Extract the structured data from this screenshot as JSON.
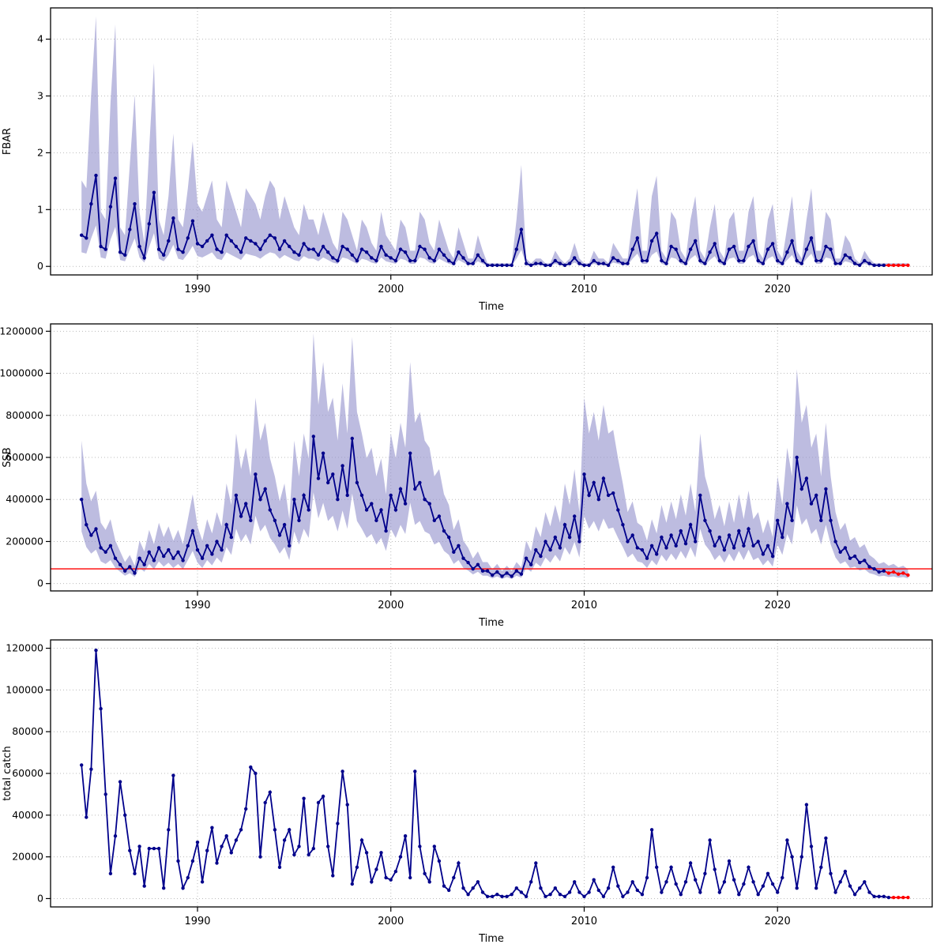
{
  "colors": {
    "line": "#00008B",
    "point": "#00008B",
    "band": "#9493CD",
    "forecast": "#FF0000",
    "ref_line": "#FF0000",
    "grid": "#BBBBBB",
    "axis": "#000000",
    "background": "#FFFFFF"
  },
  "chart_data": [
    {
      "type": "line",
      "title": "",
      "ylabel": "FBAR",
      "xlabel": "Time",
      "x_start": 1984,
      "x_step": 0.25,
      "xlim": [
        1982.4,
        2028.0
      ],
      "ylim": [
        -0.15,
        4.55
      ],
      "xticks": [
        1990,
        2000,
        2010,
        2020
      ],
      "yticks": [
        0,
        1,
        2,
        3,
        4
      ],
      "grid": true,
      "legend": "none",
      "has_band": true,
      "ci_upper_factor": 2.75,
      "ci_lower_factor": 0.45,
      "forecast_points": 5,
      "values": [
        0.55,
        0.5,
        1.1,
        1.6,
        0.35,
        0.3,
        1.05,
        1.55,
        0.25,
        0.2,
        0.65,
        1.1,
        0.35,
        0.15,
        0.75,
        1.3,
        0.3,
        0.2,
        0.45,
        0.85,
        0.3,
        0.25,
        0.5,
        0.8,
        0.4,
        0.35,
        0.45,
        0.55,
        0.3,
        0.25,
        0.55,
        0.45,
        0.35,
        0.25,
        0.5,
        0.45,
        0.4,
        0.3,
        0.45,
        0.55,
        0.5,
        0.3,
        0.45,
        0.35,
        0.25,
        0.2,
        0.4,
        0.3,
        0.3,
        0.2,
        0.35,
        0.25,
        0.15,
        0.1,
        0.35,
        0.3,
        0.2,
        0.1,
        0.3,
        0.25,
        0.15,
        0.1,
        0.35,
        0.2,
        0.15,
        0.1,
        0.3,
        0.25,
        0.1,
        0.1,
        0.35,
        0.3,
        0.15,
        0.1,
        0.3,
        0.2,
        0.1,
        0.05,
        0.25,
        0.15,
        0.05,
        0.05,
        0.2,
        0.1,
        0.02,
        0.02,
        0.02,
        0.02,
        0.02,
        0.02,
        0.3,
        0.65,
        0.05,
        0.02,
        0.05,
        0.05,
        0.02,
        0.02,
        0.1,
        0.05,
        0.02,
        0.05,
        0.15,
        0.05,
        0.02,
        0.02,
        0.1,
        0.05,
        0.05,
        0.02,
        0.15,
        0.1,
        0.05,
        0.05,
        0.3,
        0.5,
        0.1,
        0.1,
        0.45,
        0.58,
        0.1,
        0.05,
        0.35,
        0.3,
        0.1,
        0.05,
        0.3,
        0.45,
        0.1,
        0.05,
        0.25,
        0.4,
        0.1,
        0.05,
        0.3,
        0.35,
        0.1,
        0.1,
        0.35,
        0.45,
        0.1,
        0.05,
        0.3,
        0.4,
        0.1,
        0.05,
        0.25,
        0.45,
        0.1,
        0.05,
        0.3,
        0.5,
        0.1,
        0.1,
        0.35,
        0.3,
        0.05,
        0.05,
        0.2,
        0.15,
        0.05,
        0.02,
        0.1,
        0.05,
        0.02,
        0.02,
        0.02,
        0.02,
        0.02,
        0.02,
        0.02,
        0.02
      ]
    },
    {
      "type": "line",
      "title": "",
      "ylabel": "SSB",
      "xlabel": "Time",
      "x_start": 1984,
      "x_step": 0.25,
      "xlim": [
        1982.4,
        2028.0
      ],
      "ylim": [
        -35000,
        1235000
      ],
      "xticks": [
        1990,
        2000,
        2010,
        2020
      ],
      "yticks": [
        0,
        200000,
        400000,
        600000,
        800000,
        1000000,
        1200000
      ],
      "grid": true,
      "legend": "none",
      "has_band": true,
      "ci_upper_factor": 1.7,
      "ci_lower_factor": 0.62,
      "ref_line": 70000,
      "forecast_points": 5,
      "values": [
        400000,
        280000,
        230000,
        260000,
        170000,
        150000,
        180000,
        120000,
        90000,
        60000,
        80000,
        50000,
        120000,
        90000,
        150000,
        110000,
        170000,
        130000,
        160000,
        120000,
        150000,
        110000,
        180000,
        250000,
        160000,
        120000,
        180000,
        140000,
        200000,
        160000,
        280000,
        220000,
        420000,
        320000,
        380000,
        300000,
        520000,
        400000,
        450000,
        350000,
        300000,
        230000,
        280000,
        180000,
        400000,
        300000,
        420000,
        350000,
        700000,
        500000,
        620000,
        480000,
        520000,
        400000,
        560000,
        420000,
        690000,
        480000,
        420000,
        350000,
        380000,
        300000,
        350000,
        250000,
        420000,
        350000,
        450000,
        380000,
        620000,
        450000,
        480000,
        400000,
        380000,
        300000,
        320000,
        250000,
        220000,
        150000,
        180000,
        120000,
        100000,
        70000,
        90000,
        60000,
        60000,
        40000,
        55000,
        35000,
        50000,
        35000,
        60000,
        45000,
        120000,
        90000,
        160000,
        130000,
        200000,
        160000,
        220000,
        170000,
        280000,
        220000,
        320000,
        200000,
        520000,
        420000,
        480000,
        400000,
        500000,
        420000,
        430000,
        350000,
        280000,
        200000,
        230000,
        170000,
        160000,
        120000,
        180000,
        140000,
        220000,
        170000,
        230000,
        180000,
        250000,
        190000,
        280000,
        200000,
        420000,
        300000,
        250000,
        180000,
        220000,
        160000,
        230000,
        170000,
        250000,
        180000,
        260000,
        180000,
        200000,
        140000,
        180000,
        130000,
        300000,
        220000,
        380000,
        300000,
        600000,
        450000,
        500000,
        380000,
        420000,
        300000,
        450000,
        300000,
        200000,
        150000,
        170000,
        120000,
        130000,
        100000,
        110000,
        80000,
        70000,
        55000,
        60000,
        50000,
        55000,
        45000,
        50000,
        40000
      ]
    },
    {
      "type": "line",
      "title": "",
      "ylabel": "total catch",
      "xlabel": "Time",
      "x_start": 1984,
      "x_step": 0.25,
      "xlim": [
        1982.4,
        2028.0
      ],
      "ylim": [
        -4000,
        124000
      ],
      "xticks": [
        1990,
        2000,
        2010,
        2020
      ],
      "yticks": [
        0,
        20000,
        40000,
        60000,
        80000,
        100000,
        120000
      ],
      "grid": true,
      "legend": "none",
      "has_band": false,
      "forecast_points": 4,
      "values": [
        64000,
        39000,
        62000,
        119000,
        91000,
        50000,
        12000,
        30000,
        56000,
        40000,
        23000,
        12000,
        25000,
        6000,
        24000,
        24000,
        24000,
        5000,
        33000,
        59000,
        18000,
        5000,
        10000,
        18000,
        27000,
        8000,
        23000,
        34000,
        17000,
        25000,
        30000,
        22000,
        28000,
        33000,
        43000,
        63000,
        60000,
        20000,
        46000,
        51000,
        33000,
        15000,
        28000,
        33000,
        21000,
        25000,
        48000,
        21000,
        24000,
        46000,
        49000,
        25000,
        11000,
        36000,
        61000,
        45000,
        7000,
        15000,
        28000,
        22000,
        8000,
        14000,
        22000,
        10000,
        9000,
        13000,
        20000,
        30000,
        10000,
        61000,
        25000,
        12000,
        8000,
        25000,
        18000,
        6000,
        4000,
        10000,
        17000,
        5000,
        2000,
        5000,
        8000,
        3000,
        1000,
        1000,
        2000,
        1000,
        1000,
        2000,
        5000,
        3000,
        1000,
        8000,
        17000,
        5000,
        1000,
        2000,
        5000,
        2000,
        1000,
        3000,
        8000,
        3000,
        1000,
        3000,
        9000,
        4000,
        1000,
        5000,
        15000,
        6000,
        1000,
        3000,
        8000,
        4000,
        2000,
        10000,
        33000,
        15000,
        3000,
        8000,
        15000,
        7000,
        2000,
        8000,
        17000,
        9000,
        3000,
        12000,
        28000,
        14000,
        3000,
        8000,
        18000,
        9000,
        2000,
        7000,
        15000,
        8000,
        2000,
        6000,
        12000,
        7000,
        3000,
        10000,
        28000,
        20000,
        5000,
        20000,
        45000,
        25000,
        5000,
        15000,
        29000,
        12000,
        3000,
        8000,
        13000,
        6000,
        2000,
        5000,
        8000,
        3000,
        1000,
        1000,
        1000,
        500,
        500,
        500,
        500,
        500
      ]
    }
  ]
}
